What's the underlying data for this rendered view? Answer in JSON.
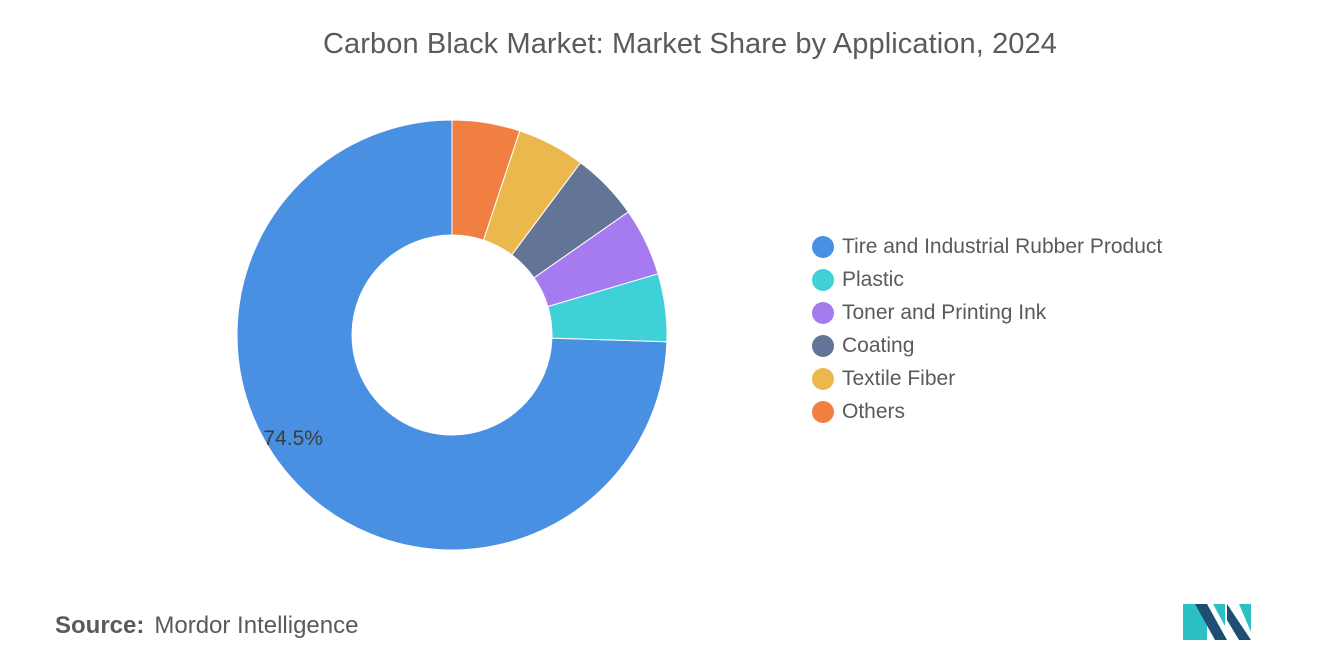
{
  "chart_data": {
    "type": "pie",
    "title": "Carbon Black Market: Market Share by Application, 2024",
    "categories": [
      "Tire and Industrial Rubber Product",
      "Plastic",
      "Toner and Printing Ink",
      "Coating",
      "Textile Fiber",
      "Others"
    ],
    "values": [
      74.5,
      5.1,
      5.1,
      5.1,
      5.1,
      5.1
    ],
    "data_labels": [
      {
        "category": "Tire and Industrial Rubber Product",
        "text": "74.5%"
      }
    ],
    "colors": [
      "#4a90e2",
      "#40d0d8",
      "#a77bf0",
      "#637596",
      "#ebb84e",
      "#f17f42"
    ],
    "donut": true,
    "legend_position": "right"
  },
  "source": {
    "label": "Source:",
    "value": "Mordor Intelligence"
  },
  "logo": {
    "icon": "mordor-intelligence-logo-icon",
    "colors": [
      "#1e4f73",
      "#2cc0c4"
    ]
  }
}
